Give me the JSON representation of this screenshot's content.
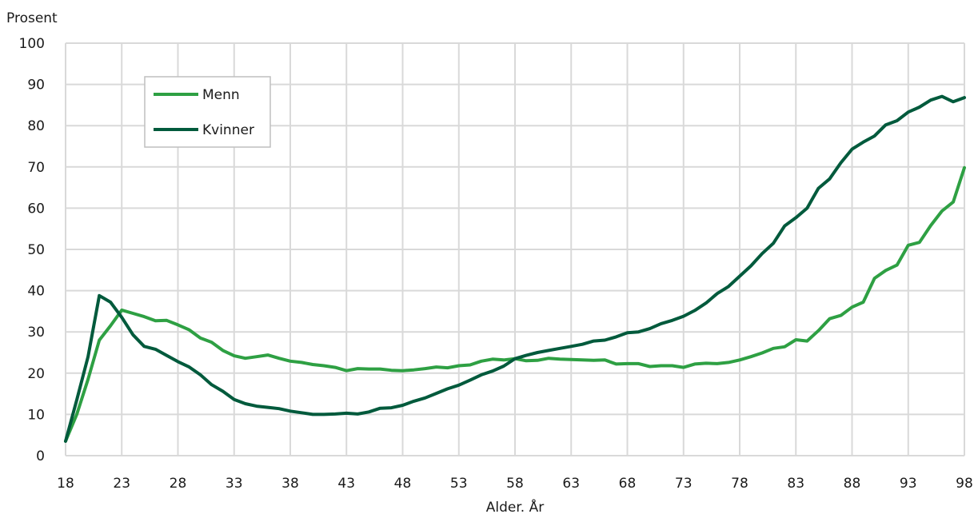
{
  "chart_data": {
    "type": "line",
    "ylabel": "Prosent",
    "xlabel": "Alder. År",
    "ylim": [
      0,
      100
    ],
    "xlim": [
      18,
      98
    ],
    "y_ticks": [
      "0",
      "10",
      "20",
      "30",
      "40",
      "50",
      "60",
      "70",
      "80",
      "90",
      "100"
    ],
    "x_ticks": [
      "18",
      "23",
      "28",
      "33",
      "38",
      "43",
      "48",
      "53",
      "58",
      "63",
      "68",
      "73",
      "78",
      "83",
      "88",
      "93",
      "98"
    ],
    "grid": true,
    "legend": "top-left",
    "series": [
      {
        "name": "Menn",
        "color": "#2ea043",
        "x": [
          18,
          19,
          20,
          21,
          22,
          23,
          24,
          25,
          26,
          27,
          28,
          29,
          30,
          31,
          32,
          33,
          34,
          35,
          36,
          37,
          38,
          39,
          40,
          41,
          42,
          43,
          44,
          45,
          46,
          47,
          48,
          49,
          50,
          51,
          52,
          53,
          54,
          55,
          56,
          57,
          58,
          59,
          60,
          61,
          62,
          63,
          64,
          65,
          66,
          67,
          68,
          69,
          70,
          71,
          72,
          73,
          74,
          75,
          76,
          77,
          78,
          79,
          80,
          81,
          82,
          83,
          84,
          85,
          86,
          87,
          88,
          89,
          90,
          91,
          92,
          93,
          94,
          95,
          96,
          97,
          98
        ],
        "values": [
          3.5,
          10,
          18.5,
          28,
          31.5,
          35.3,
          34.5,
          33.7,
          32.7,
          32.8,
          31.7,
          30.5,
          28.5,
          27.5,
          25.5,
          24.2,
          23.6,
          24,
          24.4,
          23.6,
          22.9,
          22.6,
          22.1,
          21.8,
          21.4,
          20.6,
          21.1,
          21,
          21,
          20.7,
          20.6,
          20.8,
          21.1,
          21.5,
          21.3,
          21.8,
          22,
          22.9,
          23.4,
          23.2,
          23.5,
          23,
          23.1,
          23.6,
          23.4,
          23.3,
          23.2,
          23.1,
          23.2,
          22.2,
          22.3,
          22.3,
          21.6,
          21.8,
          21.8,
          21.4,
          22.2,
          22.4,
          22.3,
          22.6,
          23.2,
          24,
          24.9,
          26,
          26.4,
          28.1,
          27.8,
          30.3,
          33.2,
          34,
          36,
          37.2,
          43,
          44.9,
          46.2,
          51,
          51.7,
          55.8,
          59.3,
          61.5,
          69.8
        ]
      },
      {
        "name": "Kvinner",
        "color": "#005a3c",
        "x": [
          18,
          19,
          20,
          21,
          22,
          23,
          24,
          25,
          26,
          27,
          28,
          29,
          30,
          31,
          32,
          33,
          34,
          35,
          36,
          37,
          38,
          39,
          40,
          41,
          42,
          43,
          44,
          45,
          46,
          47,
          48,
          49,
          50,
          51,
          52,
          53,
          54,
          55,
          56,
          57,
          58,
          59,
          60,
          61,
          62,
          63,
          64,
          65,
          66,
          67,
          68,
          69,
          70,
          71,
          72,
          73,
          74,
          75,
          76,
          77,
          78,
          79,
          80,
          81,
          82,
          83,
          84,
          85,
          86,
          87,
          88,
          89,
          90,
          91,
          92,
          93,
          94,
          95,
          96,
          97,
          98
        ],
        "values": [
          3.5,
          13.5,
          24,
          38.8,
          37.2,
          33.5,
          29.3,
          26.5,
          25.8,
          24.3,
          22.8,
          21.5,
          19.6,
          17.2,
          15.6,
          13.6,
          12.6,
          12,
          11.7,
          11.4,
          10.8,
          10.4,
          10,
          10,
          10.1,
          10.3,
          10.1,
          10.6,
          11.5,
          11.6,
          12.2,
          13.2,
          14,
          15.1,
          16.2,
          17.1,
          18.3,
          19.6,
          20.5,
          21.7,
          23.5,
          24.3,
          25,
          25.5,
          26,
          26.5,
          27,
          27.8,
          28,
          28.8,
          29.8,
          30,
          30.8,
          32,
          32.8,
          33.8,
          35.2,
          37,
          39.3,
          41,
          43.5,
          46,
          49,
          51.5,
          55.7,
          57.7,
          60,
          64.8,
          67.1,
          71,
          74.3,
          76,
          77.5,
          80.2,
          81.2,
          83.3,
          84.5,
          86.2,
          87.1,
          85.8,
          86.8
        ]
      }
    ]
  }
}
